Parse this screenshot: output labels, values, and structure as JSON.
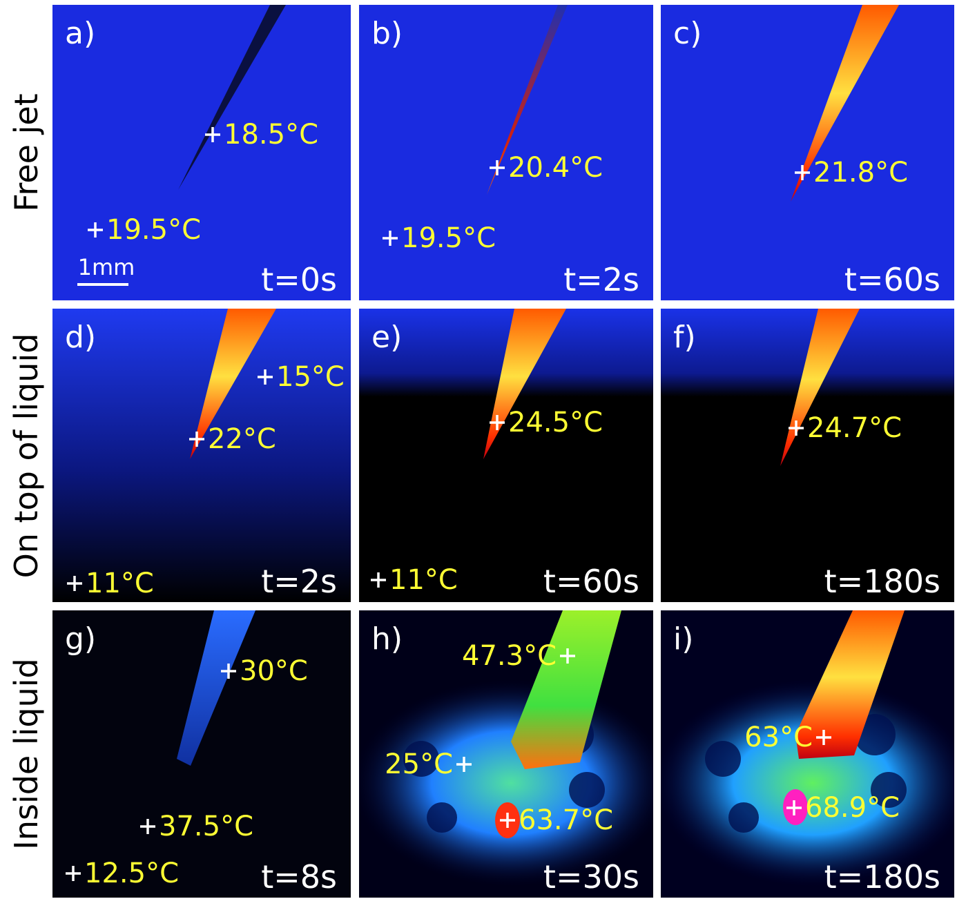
{
  "rows": [
    {
      "label": "Free jet",
      "panels": [
        {
          "letter": "a)",
          "time": "t=0s",
          "readings": [
            "18.5°C",
            "19.5°C"
          ]
        },
        {
          "letter": "b)",
          "time": "t=2s",
          "readings": [
            "20.4°C",
            "19.5°C"
          ]
        },
        {
          "letter": "c)",
          "time": "t=60s",
          "readings": [
            "21.8°C"
          ]
        }
      ]
    },
    {
      "label": "On top of liquid",
      "panels": [
        {
          "letter": "d)",
          "time": "t=2s",
          "readings": [
            "22°C",
            "15°C",
            "11°C"
          ]
        },
        {
          "letter": "e)",
          "time": "t=60s",
          "readings": [
            "24.5°C",
            "11°C"
          ]
        },
        {
          "letter": "f)",
          "time": "t=180s",
          "readings": [
            "24.7°C"
          ]
        }
      ]
    },
    {
      "label": "Inside liquid",
      "panels": [
        {
          "letter": "g)",
          "time": "t=8s",
          "readings": [
            "30°C",
            "37.5°C",
            "12.5°C"
          ]
        },
        {
          "letter": "h)",
          "time": "t=30s",
          "readings": [
            "47.3°C",
            "25°C",
            "63.7°C"
          ]
        },
        {
          "letter": "i)",
          "time": "t=180s",
          "readings": [
            "63°C",
            "68.9°C"
          ]
        }
      ]
    }
  ],
  "scale_bar": "1mm"
}
